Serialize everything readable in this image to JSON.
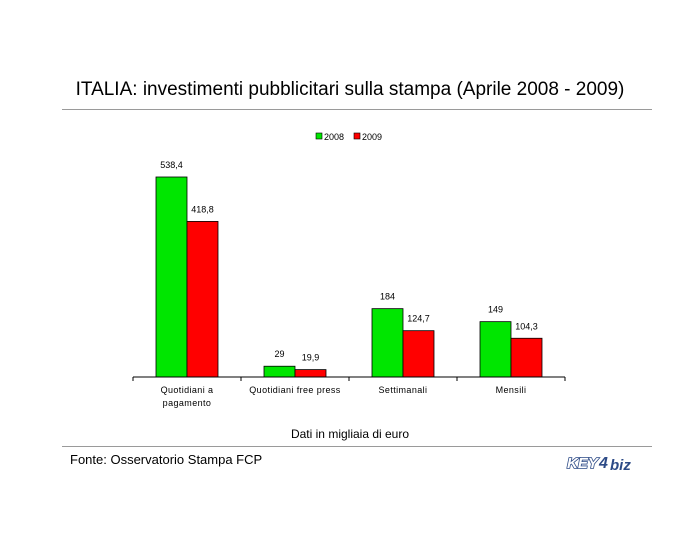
{
  "title": "ITALIA: investimenti pubblicitari sulla stampa (Aprile 2008 - 2009)",
  "unit_note": "Dati in migliaia di euro",
  "source": "Fonte: Osservatorio Stampa FCP",
  "logo": {
    "left": "KEY",
    "mid": "4",
    "right": "biz"
  },
  "colors": {
    "2008": "#00e600",
    "2009": "#ff0000"
  },
  "chart_data": {
    "type": "bar",
    "categories": [
      "Quotidiani a pagamento",
      "Quotidiani free press",
      "Settimanali",
      "Mensili"
    ],
    "category_lines": [
      [
        "Quotidiani a",
        "pagamento"
      ],
      [
        "Quotidiani free press"
      ],
      [
        "Settimanali"
      ],
      [
        "Mensili"
      ]
    ],
    "series": [
      {
        "name": "2008",
        "values": [
          538.4,
          29,
          184,
          149
        ],
        "labels": [
          "538,4",
          "29",
          "184",
          "149"
        ]
      },
      {
        "name": "2009",
        "values": [
          418.8,
          19.9,
          124.7,
          104.3
        ],
        "labels": [
          "418,8",
          "19,9",
          "124,7",
          "104,3"
        ]
      }
    ],
    "ylim": [
      0,
      538.4
    ],
    "legend_position": "top-center",
    "grid": false
  }
}
